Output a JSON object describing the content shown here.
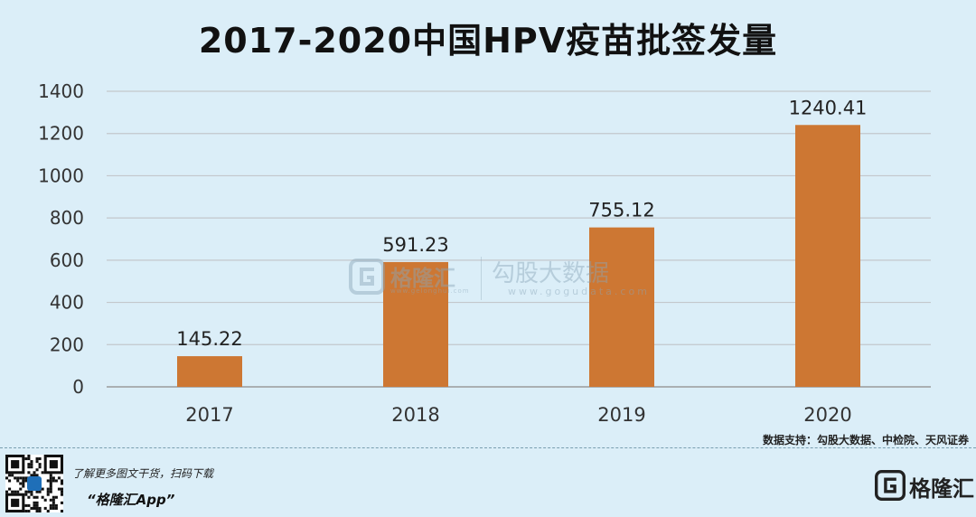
{
  "header": {
    "title": "2017-2020中国HPV疫苗批签发量"
  },
  "chart_data": {
    "type": "bar",
    "title": "2017-2020中国HPV疫苗批签发量",
    "xlabel": "",
    "ylabel": "",
    "categories": [
      "2017",
      "2018",
      "2019",
      "2020"
    ],
    "values": [
      145.22,
      591.23,
      755.12,
      1240.41
    ],
    "value_labels": [
      "145.22",
      "591.23",
      "755.12",
      "1240.41"
    ],
    "ylim": [
      0,
      1400
    ],
    "yticks": [
      0,
      200,
      400,
      600,
      800,
      1000,
      1200,
      1400
    ],
    "grid": true,
    "legend": "none",
    "bar_color": "#cd7733"
  },
  "source": {
    "text": "数据支持：勾股大数据、中检院、天风证券"
  },
  "watermark": {
    "name": "格隆汇",
    "sub": "www.gelonghui.com",
    "brand2": "勾股大数据",
    "url": "www.gogudata.com"
  },
  "footer": {
    "promo_text": "了解更多图文干货，扫码下载",
    "app_name": "“格隆汇App”",
    "logo_text": "格隆汇"
  },
  "colors": {
    "background": "#dbeef8",
    "bar": "#cd7733",
    "grid": "#c3c7cc",
    "axis": "#9a9a9a"
  }
}
